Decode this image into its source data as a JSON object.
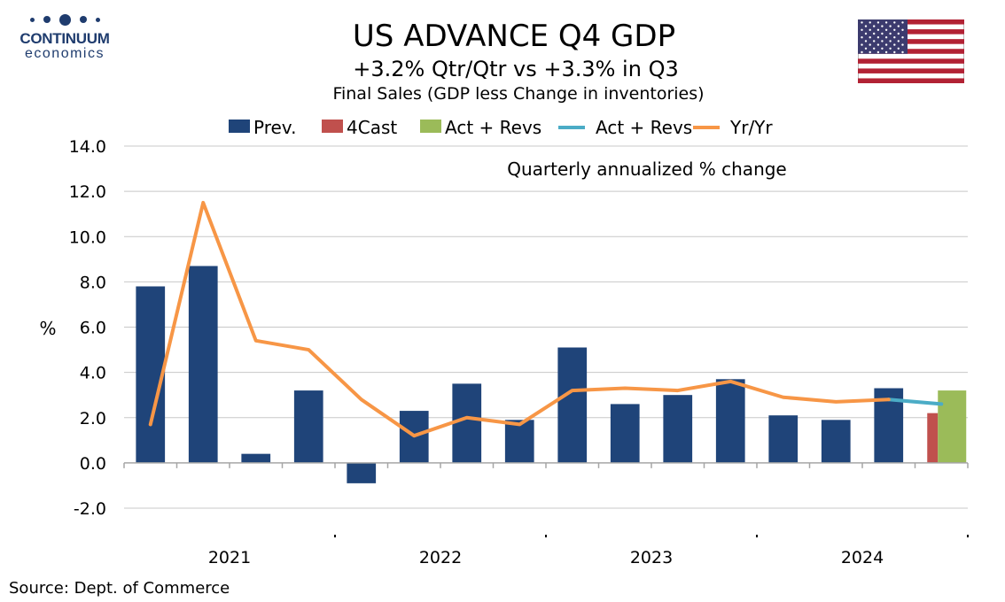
{
  "logo": {
    "name": "CONTINUUM",
    "sub": "economics"
  },
  "source": "Source: Dept. of Commerce",
  "chart_data": {
    "type": "bar",
    "title": "US ADVANCE Q4  GDP",
    "subtitle": "+3.2% Qtr/Qtr vs +3.3% in Q3",
    "subtitle2": "Final Sales (GDP less Change in inventories)",
    "annotation": "Quarterly annualized % change",
    "ylabel": "%",
    "ylim": [
      -2.0,
      14.0
    ],
    "yticks": [
      "14.0",
      "12.0",
      "10.0",
      "8.0",
      "6.0",
      "4.0",
      "2.0",
      "0.0",
      "-2.0"
    ],
    "year_labels": [
      "2021",
      "2022",
      "2023",
      "2024"
    ],
    "legend": [
      "Prev.",
      "4Cast",
      "Act + Revs",
      "Act + Revs",
      "Yr/Yr"
    ],
    "colors": {
      "prev": "#1f4479",
      "forecast": "#c0504d",
      "actual": "#9bbb59",
      "actual_line": "#4bacc6",
      "yoy": "#f79646"
    },
    "categories": [
      "2021 Q1",
      "2021 Q2",
      "2021 Q3",
      "2021 Q4",
      "2022 Q1",
      "2022 Q2",
      "2022 Q3",
      "2022 Q4",
      "2023 Q1",
      "2023 Q2",
      "2023 Q3",
      "2023 Q4",
      "2024 Q1",
      "2024 Q2",
      "2024 Q3",
      "2024 Q4"
    ],
    "series": [
      {
        "name": "Prev.",
        "values": [
          7.8,
          8.7,
          0.4,
          3.2,
          -0.9,
          2.3,
          3.5,
          1.9,
          5.1,
          2.6,
          3.0,
          3.7,
          2.1,
          1.9,
          3.3,
          null
        ]
      },
      {
        "name": "4Cast",
        "values": [
          null,
          null,
          null,
          null,
          null,
          null,
          null,
          null,
          null,
          null,
          null,
          null,
          null,
          null,
          null,
          2.2
        ]
      },
      {
        "name": "Act + Revs",
        "values": [
          null,
          null,
          null,
          null,
          null,
          null,
          null,
          null,
          null,
          null,
          null,
          null,
          null,
          null,
          null,
          3.2
        ]
      },
      {
        "name": "Act + Revs",
        "values": [
          null,
          null,
          null,
          null,
          null,
          null,
          null,
          null,
          null,
          null,
          null,
          null,
          null,
          null,
          2.8,
          2.6
        ]
      },
      {
        "name": "Yr/Yr",
        "values": [
          1.7,
          11.5,
          5.4,
          5.0,
          2.8,
          1.2,
          2.0,
          1.7,
          3.2,
          3.3,
          3.2,
          3.6,
          2.9,
          2.7,
          2.8,
          null
        ]
      }
    ]
  }
}
